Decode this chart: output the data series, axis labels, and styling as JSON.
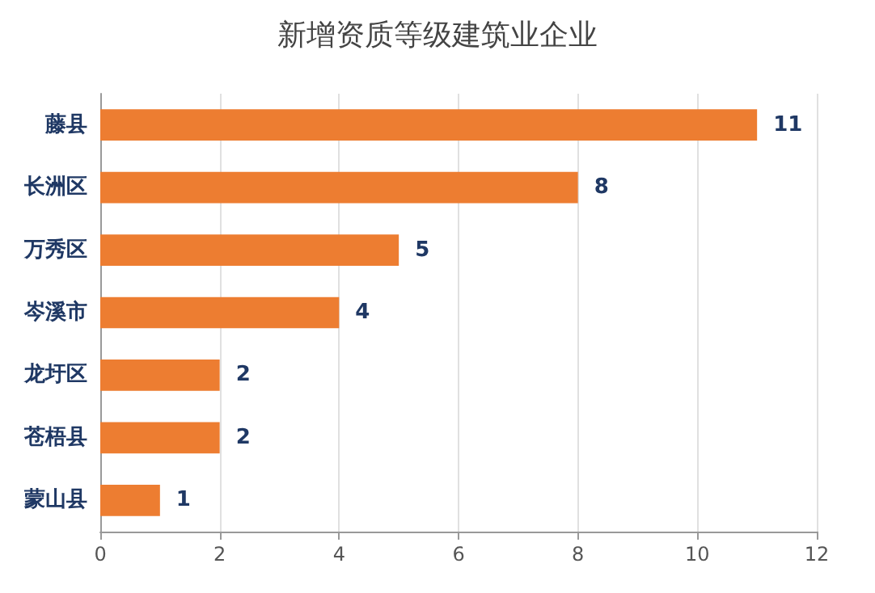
{
  "chart_data": {
    "type": "bar",
    "orientation": "horizontal",
    "title": "新增资质等级建筑业企业",
    "categories": [
      "藤县",
      "长洲区",
      "万秀区",
      "岑溪市",
      "龙圩区",
      "苍梧县",
      "蒙山县"
    ],
    "values": [
      11,
      8,
      5,
      4,
      2,
      2,
      1
    ],
    "color": "#ed7d31",
    "xlim": [
      0,
      12
    ],
    "xticks": [
      0,
      2,
      4,
      6,
      8,
      10,
      12
    ],
    "grid": "x",
    "data_labels": true
  }
}
